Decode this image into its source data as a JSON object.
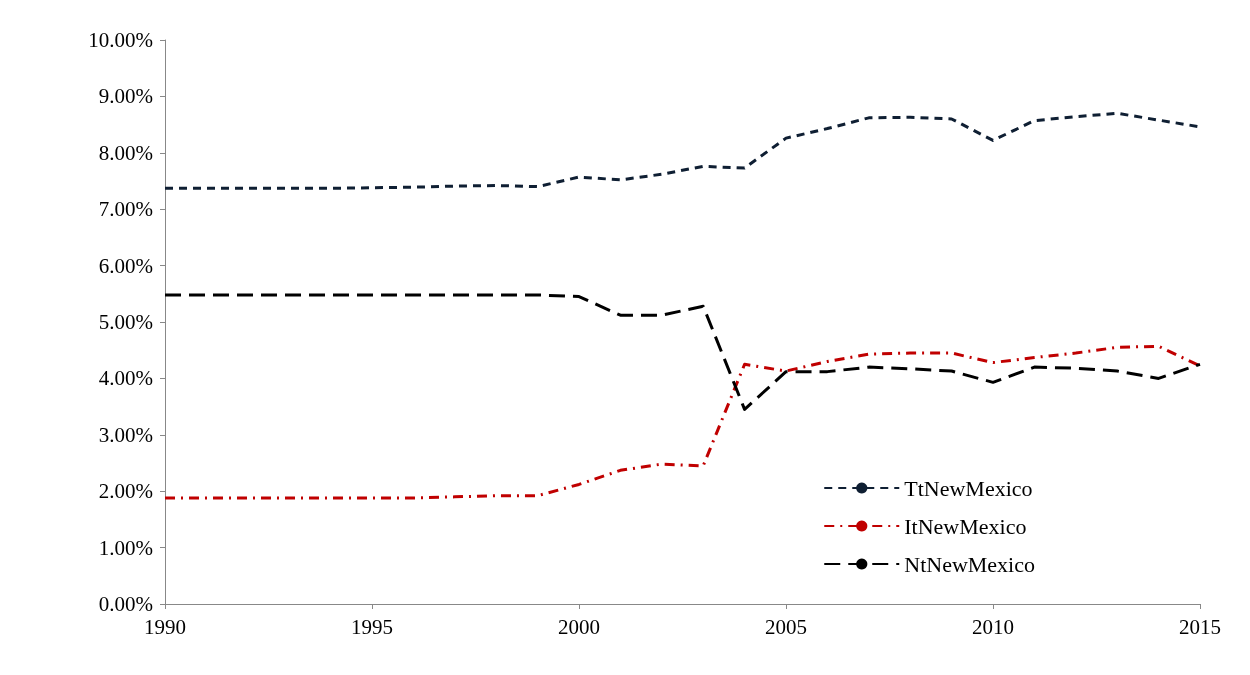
{
  "chart_data": {
    "type": "line",
    "x": [
      1990,
      1991,
      1992,
      1993,
      1994,
      1995,
      1996,
      1997,
      1998,
      1999,
      2000,
      2001,
      2002,
      2003,
      2004,
      2005,
      2006,
      2007,
      2008,
      2009,
      2010,
      2011,
      2012,
      2013,
      2014,
      2015
    ],
    "series": [
      {
        "name": "TtNewMexico",
        "color": "#0f1f33",
        "line_style": "dashed",
        "values": [
          7.37,
          7.37,
          7.37,
          7.37,
          7.37,
          7.38,
          7.39,
          7.41,
          7.42,
          7.4,
          7.57,
          7.52,
          7.62,
          7.76,
          7.73,
          8.26,
          8.43,
          8.62,
          8.63,
          8.6,
          8.22,
          8.57,
          8.64,
          8.7,
          8.58,
          8.46
        ]
      },
      {
        "name": "ItNewMexico",
        "color": "#c00000",
        "line_style": "dashdot",
        "values": [
          1.88,
          1.88,
          1.88,
          1.88,
          1.88,
          1.88,
          1.88,
          1.9,
          1.92,
          1.92,
          2.12,
          2.37,
          2.48,
          2.45,
          4.25,
          4.13,
          4.3,
          4.43,
          4.45,
          4.45,
          4.28,
          4.37,
          4.45,
          4.55,
          4.57,
          4.22
        ]
      },
      {
        "name": "NtNewMexico",
        "color": "#000000",
        "line_style": "longdash",
        "values": [
          5.48,
          5.48,
          5.48,
          5.48,
          5.48,
          5.48,
          5.48,
          5.48,
          5.48,
          5.48,
          5.45,
          5.12,
          5.12,
          5.28,
          3.45,
          4.12,
          4.12,
          4.2,
          4.17,
          4.13,
          3.93,
          4.2,
          4.18,
          4.13,
          4.0,
          4.25
        ]
      }
    ],
    "xlim": [
      1990,
      2015
    ],
    "xticks": [
      1990,
      1995,
      2000,
      2005,
      2010,
      2015
    ],
    "ylim": [
      0,
      10
    ],
    "yticks": [
      {
        "value": 0,
        "label": "0.00%"
      },
      {
        "value": 1,
        "label": "1.00%"
      },
      {
        "value": 2,
        "label": "2.00%"
      },
      {
        "value": 3,
        "label": "3.00%"
      },
      {
        "value": 4,
        "label": "4.00%"
      },
      {
        "value": 5,
        "label": "5.00%"
      },
      {
        "value": 6,
        "label": "6.00%"
      },
      {
        "value": 7,
        "label": "7.00%"
      },
      {
        "value": 8,
        "label": "8.00%"
      },
      {
        "value": 9,
        "label": "9.00%"
      },
      {
        "value": 10,
        "label": "10.00%"
      }
    ],
    "grid": false,
    "legend": "bottom right",
    "marker": "none"
  }
}
